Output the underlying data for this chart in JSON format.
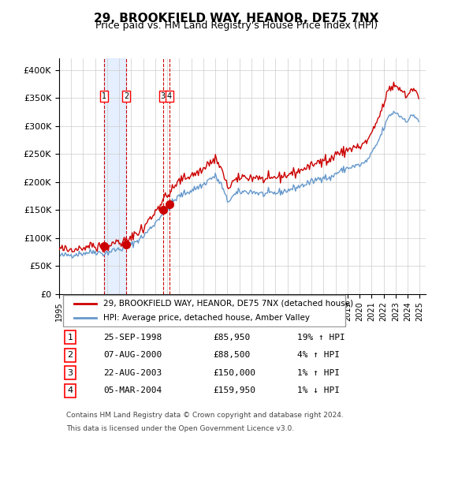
{
  "title": "29, BROOKFIELD WAY, HEANOR, DE75 7NX",
  "subtitle": "Price paid vs. HM Land Registry's House Price Index (HPI)",
  "legend_line1": "29, BROOKFIELD WAY, HEANOR, DE75 7NX (detached house)",
  "legend_line2": "HPI: Average price, detached house, Amber Valley",
  "footer1": "Contains HM Land Registry data © Crown copyright and database right 2024.",
  "footer2": "This data is licensed under the Open Government Licence v3.0.",
  "transactions": [
    {
      "num": 1,
      "date": "25-SEP-1998",
      "price": 85950,
      "pct": "19%",
      "dir": "↑",
      "year_x": 1998.73
    },
    {
      "num": 2,
      "date": "07-AUG-2000",
      "price": 88500,
      "pct": "4%",
      "dir": "↑",
      "year_x": 2000.6
    },
    {
      "num": 3,
      "date": "22-AUG-2003",
      "price": 150000,
      "pct": "1%",
      "dir": "↑",
      "year_x": 2003.64
    },
    {
      "num": 4,
      "date": "05-MAR-2004",
      "price": 159950,
      "pct": "1%",
      "dir": "↓",
      "year_x": 2004.17
    }
  ],
  "hpi_color": "#6699cc",
  "price_color": "#cc0000",
  "dot_color": "#cc0000",
  "vline_color": "#cc0000",
  "shade_color": "#cce0ff",
  "grid_color": "#cccccc",
  "ylim": [
    0,
    420000
  ],
  "xlim_start": 1995.0,
  "xlim_end": 2025.5,
  "yticks": [
    0,
    50000,
    100000,
    150000,
    200000,
    250000,
    300000,
    350000,
    400000
  ],
  "ytick_labels": [
    "£0",
    "£50K",
    "£100K",
    "£150K",
    "£200K",
    "£250K",
    "£300K",
    "£350K",
    "£400K"
  ],
  "xticks": [
    1995,
    1996,
    1997,
    1998,
    1999,
    2000,
    2001,
    2002,
    2003,
    2004,
    2005,
    2006,
    2007,
    2008,
    2009,
    2010,
    2011,
    2012,
    2013,
    2014,
    2015,
    2016,
    2017,
    2018,
    2019,
    2020,
    2021,
    2022,
    2023,
    2024,
    2025
  ]
}
